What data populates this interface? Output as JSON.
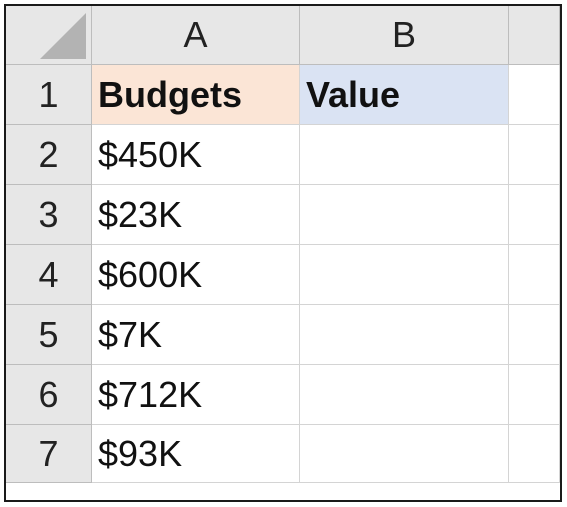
{
  "columns": [
    "A",
    "B"
  ],
  "rows": [
    {
      "num": "1",
      "a": "Budgets",
      "b": "Value"
    },
    {
      "num": "2",
      "a": "$450K",
      "b": ""
    },
    {
      "num": "3",
      "a": "$23K",
      "b": ""
    },
    {
      "num": "4",
      "a": "$600K",
      "b": ""
    },
    {
      "num": "5",
      "a": "$7K",
      "b": ""
    },
    {
      "num": "6",
      "a": "$712K",
      "b": ""
    },
    {
      "num": "7",
      "a": "$93K",
      "b": ""
    }
  ],
  "colors": {
    "header_a_fill": "#fbe5d6",
    "header_b_fill": "#dae3f3"
  }
}
